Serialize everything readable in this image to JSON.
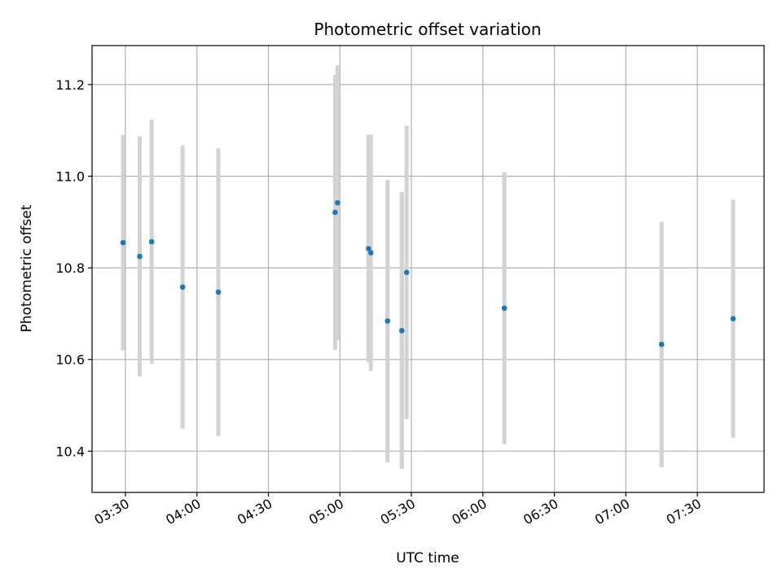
{
  "chart_data": {
    "type": "scatter",
    "title": "Photometric offset variation",
    "xlabel": "UTC time",
    "ylabel": "Photometric offset",
    "x_axis": "time",
    "xlim": [
      "03:16",
      "07:58"
    ],
    "ylim": [
      10.31,
      11.285
    ],
    "grid": true,
    "x_ticks": [
      "03:30",
      "04:00",
      "04:30",
      "05:00",
      "05:30",
      "06:00",
      "06:30",
      "07:00",
      "07:30"
    ],
    "y_ticks": [
      10.4,
      10.6,
      10.8,
      11.0,
      11.2
    ],
    "point_color": "#1f77b4",
    "errorbar_color": "#d3d3d3",
    "points": [
      {
        "time": "03:29",
        "value": 10.855,
        "err": 0.235
      },
      {
        "time": "03:36",
        "value": 10.825,
        "err": 0.262
      },
      {
        "time": "03:41",
        "value": 10.857,
        "err": 0.266
      },
      {
        "time": "03:54",
        "value": 10.758,
        "err": 0.309
      },
      {
        "time": "04:09",
        "value": 10.747,
        "err": 0.314
      },
      {
        "time": "04:58",
        "value": 10.921,
        "err": 0.3
      },
      {
        "time": "04:59",
        "value": 10.942,
        "err": 0.3
      },
      {
        "time": "05:12",
        "value": 10.842,
        "err": 0.248
      },
      {
        "time": "05:13",
        "value": 10.833,
        "err": 0.258
      },
      {
        "time": "05:20",
        "value": 10.684,
        "err": 0.308
      },
      {
        "time": "05:26",
        "value": 10.663,
        "err": 0.302
      },
      {
        "time": "05:28",
        "value": 10.79,
        "err": 0.32
      },
      {
        "time": "06:09",
        "value": 10.712,
        "err": 0.297
      },
      {
        "time": "07:15",
        "value": 10.633,
        "err": 0.268
      },
      {
        "time": "07:45",
        "value": 10.689,
        "err": 0.26
      }
    ]
  }
}
